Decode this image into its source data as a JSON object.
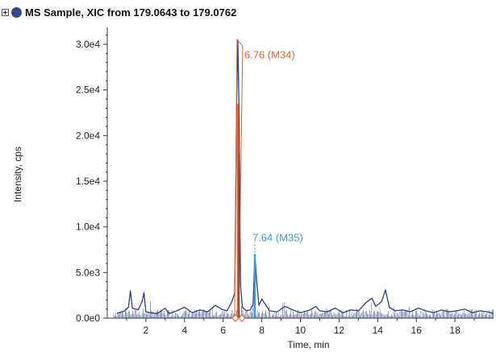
{
  "header": {
    "title": "MS Sample, XIC from 179.0643 to 179.0762"
  },
  "colors": {
    "baseline": "#2b3f86",
    "peak_m34": "#e8602c",
    "peak_m35": "#3c9bd8",
    "axis": "#333333",
    "text": "#222222"
  },
  "chart_data": {
    "type": "line",
    "title": "MS Sample, XIC from 179.0643 to 179.0762",
    "xlabel": "Time, min",
    "ylabel": "Intensity, cps",
    "xlim": [
      0,
      20
    ],
    "ylim": [
      0,
      31500
    ],
    "x_ticks": [
      2,
      4,
      6,
      8,
      10,
      12,
      14,
      16,
      18
    ],
    "x_tick_labels": [
      "2",
      "4",
      "6",
      "8",
      "10",
      "12",
      "14",
      "16",
      "18"
    ],
    "y_ticks": [
      0,
      5000,
      10000,
      15000,
      20000,
      25000,
      30000
    ],
    "y_tick_labels": [
      "0.0e0",
      "5.0e3",
      "1.0e4",
      "1.5e4",
      "2.0e4",
      "2.5e4",
      "3.0e4"
    ],
    "grid": false,
    "series": [
      {
        "x": [
          0.5,
          0.9,
          1.1,
          1.2,
          1.3,
          1.6,
          1.8,
          1.9,
          2.0,
          2.2,
          2.6,
          3.0,
          3.2,
          3.6,
          4.0,
          4.4,
          4.8,
          5.2,
          5.6,
          5.9,
          6.2,
          6.45,
          6.6,
          6.7,
          6.76,
          6.82,
          6.9,
          7.0,
          7.2,
          7.4,
          7.55,
          7.64,
          7.72,
          7.85,
          8.0,
          8.4,
          8.8,
          9.2,
          9.6,
          10.0,
          10.5,
          10.8,
          11.0,
          11.4,
          11.8,
          12.2,
          12.6,
          13.0,
          13.4,
          13.7,
          13.9,
          14.2,
          14.4,
          14.6,
          14.9,
          15.3,
          15.7,
          16.1,
          16.5,
          16.9,
          17.3,
          17.7,
          18.1,
          18.5,
          18.9,
          19.3,
          19.7,
          20.0
        ],
        "y": [
          500,
          800,
          1200,
          3000,
          1100,
          900,
          1800,
          2800,
          700,
          600,
          500,
          1100,
          500,
          800,
          1200,
          600,
          900,
          700,
          1400,
          1000,
          800,
          1800,
          2800,
          24000,
          30500,
          23500,
          3500,
          1200,
          800,
          900,
          1500,
          7000,
          4500,
          1400,
          2100,
          800,
          700,
          1300,
          900,
          600,
          900,
          1300,
          800,
          700,
          1100,
          600,
          900,
          800,
          1700,
          2200,
          1300,
          1800,
          3100,
          1200,
          800,
          900,
          700,
          1100,
          800,
          600,
          900,
          700,
          800,
          1000,
          600,
          800,
          700,
          500
        ]
      }
    ],
    "annotations": [
      {
        "x": 6.76,
        "y": 30500,
        "text": "6.76 (M34)"
      },
      {
        "x": 7.64,
        "y": 7000,
        "text": "7.64 (M35)"
      }
    ]
  }
}
